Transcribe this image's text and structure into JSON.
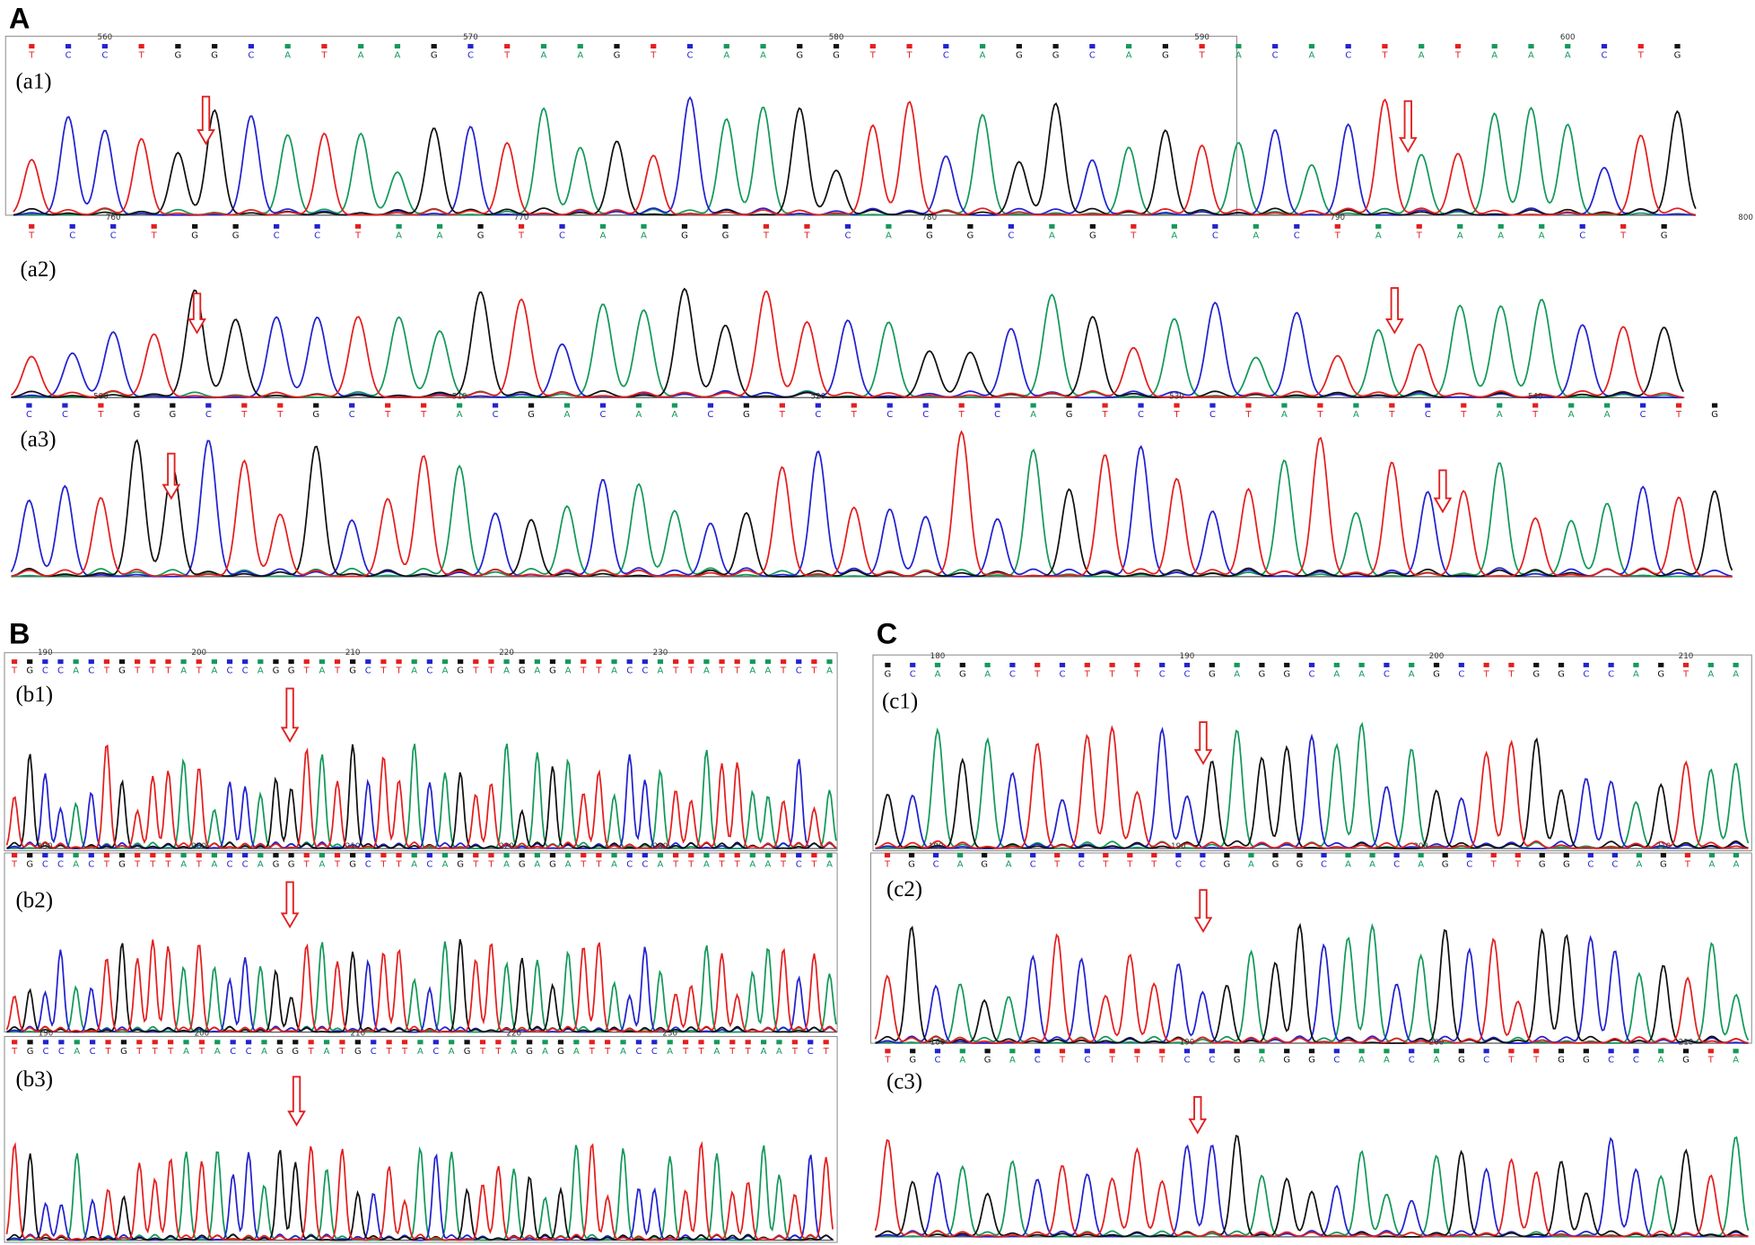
{
  "panels": [
    {
      "label": "A",
      "tracks": [
        {
          "label": "(a1)",
          "positions": [
            560,
            570,
            580,
            590,
            600
          ],
          "bases": "TCCTGGCATAAGCTAAGTCAAGGTTCAGGCAGTACACTATAAACTG"
        },
        {
          "label": "(a2)",
          "positions": [
            760,
            770,
            780,
            790,
            800
          ],
          "bases": "TCCTGGCCTAAGTCAAGGTTCAGGCAGTACACTATAAACTG"
        },
        {
          "label": "(a3)",
          "positions": [
            500,
            510,
            520,
            530,
            540
          ],
          "bases": "CCTGGCTTGCTTACGACAACGTCTCCTCAGTCTCTATATCTATAACTG"
        }
      ]
    },
    {
      "label": "B",
      "tracks": [
        {
          "label": "(b1)",
          "positions": [
            190,
            200,
            210,
            220,
            230
          ],
          "bases": "TGCCACTGTTTATACCAGGTATGCTTACAGTTAGAGATTACCATTATTAATCTA"
        },
        {
          "label": "(b2)",
          "positions": [
            190,
            200,
            210,
            220,
            230
          ],
          "bases": "TGCCACTGTTTATACCAGGTATGCTTACAGTTAGAGATTACCATTATTAATCTA"
        },
        {
          "label": "(b3)",
          "positions": [
            190,
            200,
            210,
            220,
            230
          ],
          "bases": "TGCCACTGTTTATACCAGGTATGCTTACAGTTAGAGATTACCATTATTAATCT"
        }
      ]
    },
    {
      "label": "C",
      "tracks": [
        {
          "label": "(c1)",
          "positions": [
            180,
            190,
            200,
            210
          ],
          "bases": "GCAGACTCTTTCCGAGGCAACAGCTTGGCCAGTAA"
        },
        {
          "label": "(c2)",
          "positions": [
            180,
            190,
            200,
            210
          ],
          "bases": "TGCAGACTCTTTCCGAGGCAACAGCTTGGCCAGTAA"
        },
        {
          "label": "(c3)",
          "positions": [
            180,
            190,
            200,
            210
          ],
          "bases": "TGCAGACTCTTTCCGAGGCAACAGCTTGGCCAGTA"
        }
      ]
    }
  ]
}
